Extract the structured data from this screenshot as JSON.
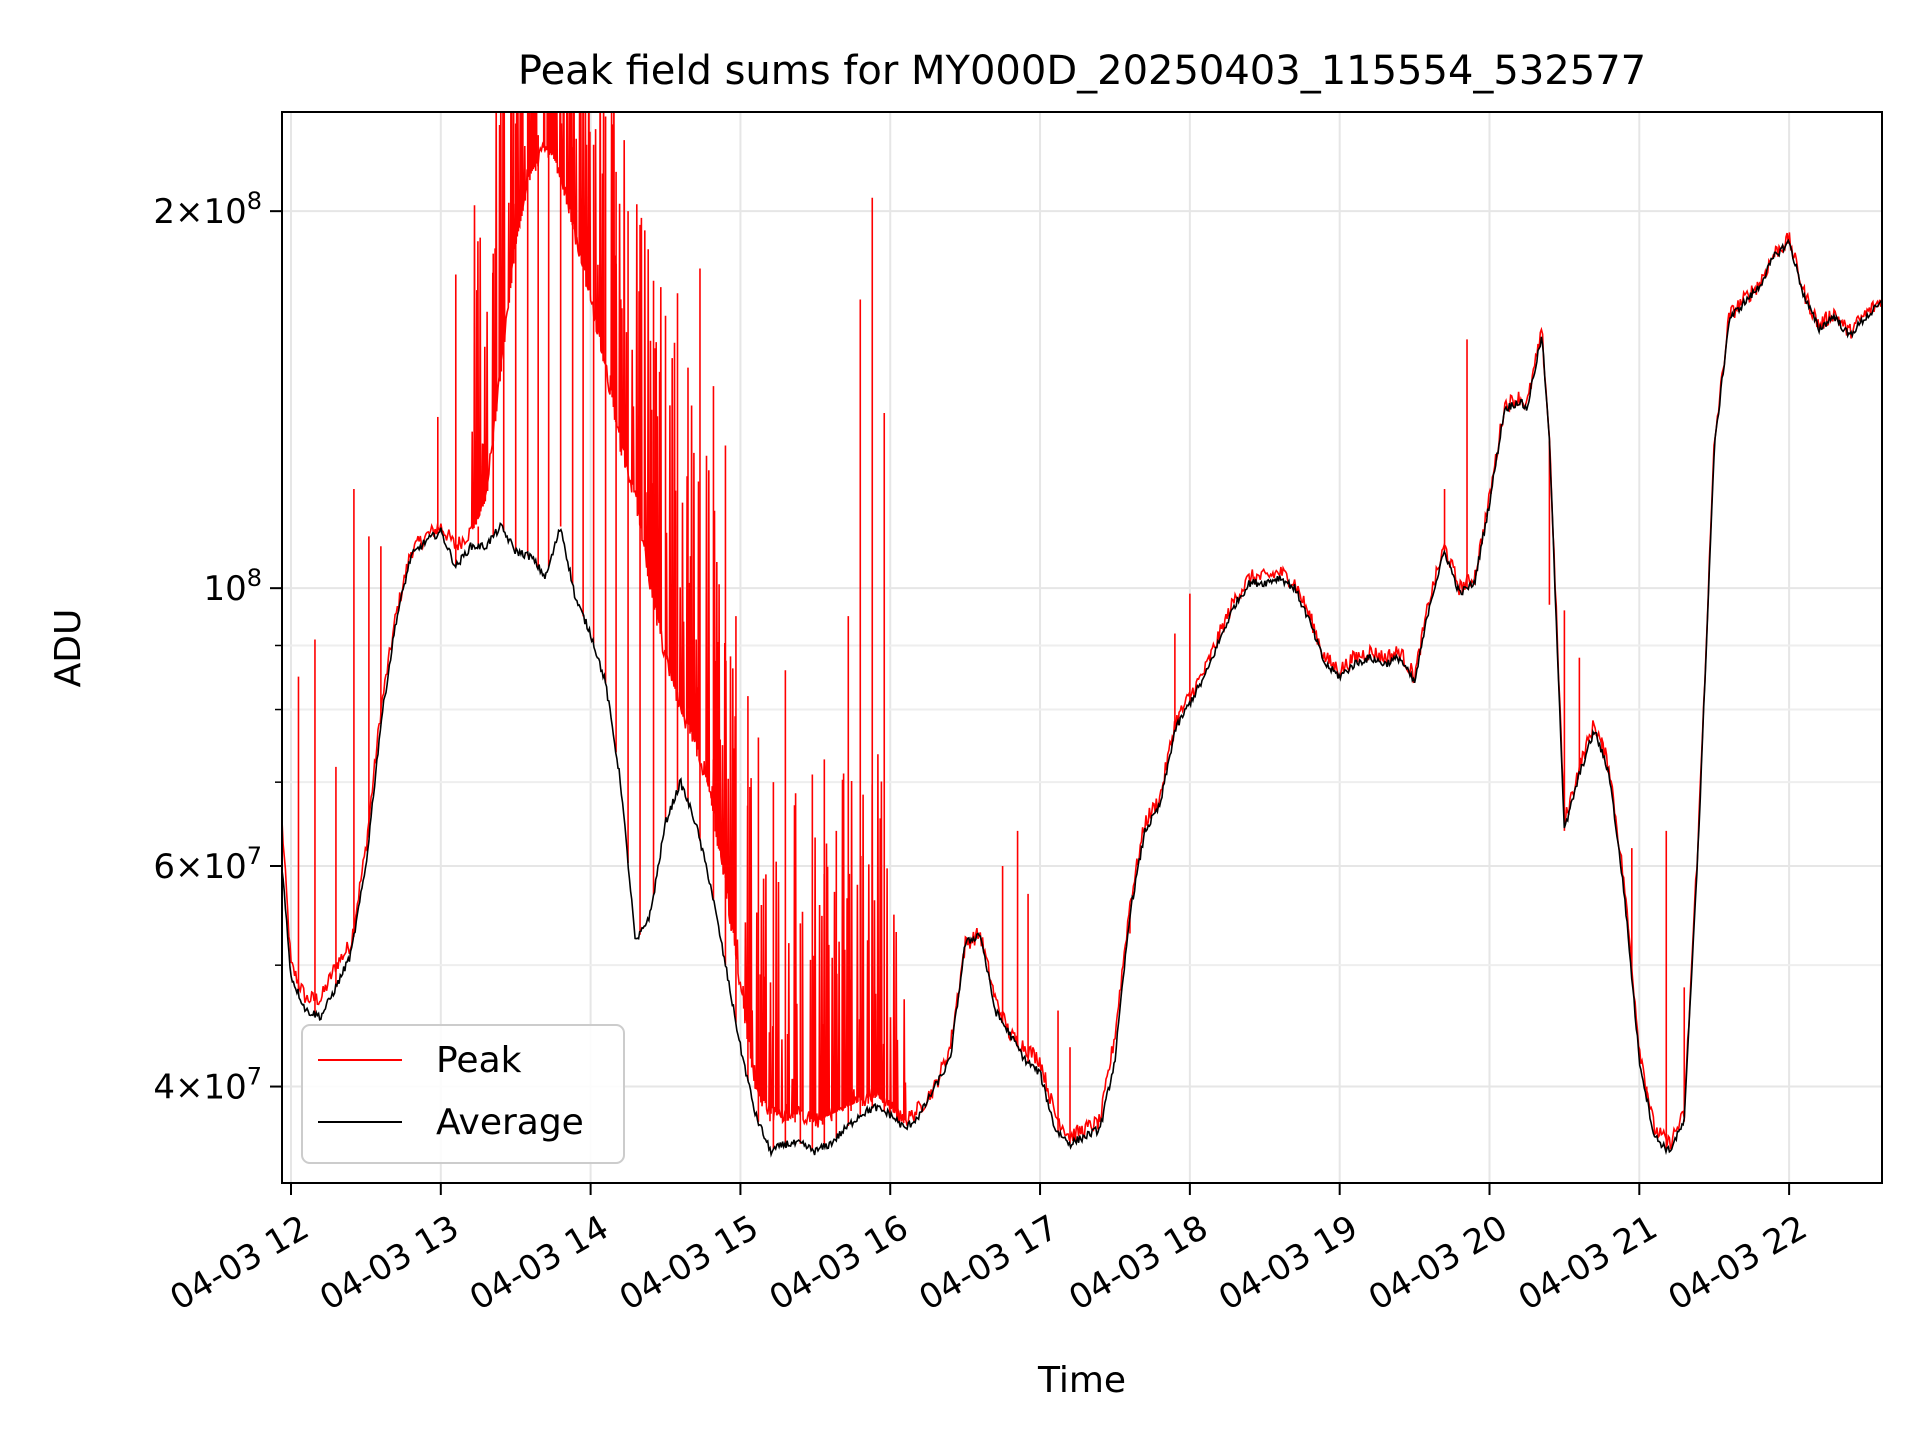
{
  "chart_data": {
    "type": "line",
    "title": "Peak field sums for MY000D_20250403_115554_532577",
    "xlabel": "Time",
    "ylabel": "ADU",
    "yscale": "log",
    "ylim": [
      33500000,
      240000000
    ],
    "xlim": [
      11.94,
      22.62
    ],
    "grid": true,
    "legend_position": "lower-left",
    "x_ticks": [
      {
        "value": 12,
        "label": "04-03 12"
      },
      {
        "value": 13,
        "label": "04-03 13"
      },
      {
        "value": 14,
        "label": "04-03 14"
      },
      {
        "value": 15,
        "label": "04-03 15"
      },
      {
        "value": 16,
        "label": "04-03 16"
      },
      {
        "value": 17,
        "label": "04-03 17"
      },
      {
        "value": 18,
        "label": "04-03 18"
      },
      {
        "value": 19,
        "label": "04-03 19"
      },
      {
        "value": 20,
        "label": "04-03 20"
      },
      {
        "value": 21,
        "label": "04-03 21"
      },
      {
        "value": 22,
        "label": "04-03 22"
      }
    ],
    "y_ticks": [
      {
        "value": 40000000,
        "mant": "4",
        "exp": "7"
      },
      {
        "value": 60000000,
        "mant": "6",
        "exp": "7"
      },
      {
        "value": 100000000,
        "mant": "",
        "exp": "8"
      },
      {
        "value": 200000000,
        "mant": "2",
        "exp": "8"
      }
    ],
    "y_minor_ticks": [
      50000000,
      70000000,
      80000000,
      90000000
    ],
    "series": [
      {
        "name": "Peak",
        "color": "#ff0000",
        "x": [
          11.94,
          12.0,
          12.1,
          12.2,
          12.3,
          12.4,
          12.5,
          12.6,
          12.7,
          12.8,
          12.9,
          13.0,
          13.1,
          13.2,
          13.3,
          13.4,
          13.5,
          13.6,
          13.7,
          13.8,
          13.9,
          14.0,
          14.1,
          14.2,
          14.3,
          14.4,
          14.5,
          14.6,
          14.7,
          14.8,
          14.9,
          15.0,
          15.1,
          15.2,
          15.3,
          15.4,
          15.5,
          15.6,
          15.7,
          15.8,
          15.9,
          16.0,
          16.1,
          16.2,
          16.3,
          16.4,
          16.5,
          16.6,
          16.7,
          16.8,
          16.9,
          17.0,
          17.1,
          17.2,
          17.3,
          17.4,
          17.5,
          17.6,
          17.7,
          17.8,
          17.9,
          17.95,
          18.0,
          18.1,
          18.2,
          18.3,
          18.4,
          18.5,
          18.6,
          18.7,
          18.8,
          18.9,
          19.0,
          19.1,
          19.2,
          19.3,
          19.4,
          19.5,
          19.6,
          19.7,
          19.8,
          19.9,
          20.0,
          20.1,
          20.2,
          20.25,
          20.3,
          20.35,
          20.4,
          20.5,
          20.6,
          20.7,
          20.8,
          20.9,
          21.0,
          21.1,
          21.2,
          21.3,
          21.4,
          21.5,
          21.6,
          21.7,
          21.8,
          21.9,
          22.0,
          22.1,
          22.2,
          22.3,
          22.4,
          22.5,
          22.62
        ],
        "y": [
          65000000,
          50000000,
          47000000,
          47000000,
          50000000,
          52000000,
          62000000,
          80000000,
          95000000,
          107000000,
          110000000,
          112000000,
          108000000,
          111000000,
          118000000,
          150000000,
          190000000,
          215000000,
          225000000,
          215000000,
          190000000,
          170000000,
          150000000,
          130000000,
          118000000,
          100000000,
          88000000,
          80000000,
          75000000,
          68000000,
          58000000,
          48000000,
          40000000,
          38000000,
          38000000,
          38000000,
          37500000,
          38000000,
          38500000,
          39000000,
          39500000,
          38500000,
          37500000,
          38500000,
          40000000,
          43000000,
          52000000,
          53000000,
          47000000,
          44000000,
          43000000,
          42000000,
          38000000,
          36500000,
          37000000,
          37500000,
          44000000,
          56000000,
          65000000,
          68000000,
          78000000,
          80000000,
          82000000,
          86000000,
          92000000,
          98000000,
          102000000,
          102000000,
          103000000,
          101000000,
          95000000,
          88000000,
          86000000,
          88000000,
          89000000,
          88000000,
          89000000,
          85000000,
          98000000,
          108000000,
          100000000,
          102000000,
          118000000,
          140000000,
          142000000,
          140000000,
          150000000,
          160000000,
          132000000,
          65000000,
          72000000,
          78000000,
          72000000,
          58000000,
          43000000,
          37000000,
          36000000,
          38000000,
          66000000,
          130000000,
          165000000,
          170000000,
          175000000,
          185000000,
          190000000,
          172000000,
          162000000,
          166000000,
          160000000,
          165000000,
          170000000
        ],
        "spikes": [
          [
            12.05,
            85000000
          ],
          [
            12.16,
            91000000
          ],
          [
            12.3,
            72000000
          ],
          [
            12.42,
            120000000
          ],
          [
            12.52,
            110000000
          ],
          [
            12.6,
            108000000
          ],
          [
            12.98,
            137000000
          ],
          [
            13.1,
            178000000
          ],
          [
            13.25,
            112000000
          ],
          [
            13.35,
            185000000
          ],
          [
            13.42,
            210000000
          ],
          [
            13.5,
            235000000
          ],
          [
            13.58,
            240000000
          ],
          [
            13.65,
            230000000
          ],
          [
            13.72,
            238000000
          ],
          [
            13.8,
            240000000
          ],
          [
            13.88,
            225000000
          ],
          [
            13.95,
            212000000
          ],
          [
            14.02,
            226000000
          ],
          [
            14.1,
            238000000
          ],
          [
            14.17,
            215000000
          ],
          [
            14.25,
            200000000
          ],
          [
            14.33,
            195000000
          ],
          [
            14.42,
            176000000
          ],
          [
            14.5,
            165000000
          ],
          [
            14.58,
            172000000
          ],
          [
            14.65,
            150000000
          ],
          [
            14.73,
            180000000
          ],
          [
            14.82,
            145000000
          ],
          [
            14.9,
            130000000
          ],
          [
            14.97,
            95000000
          ],
          [
            15.05,
            82000000
          ],
          [
            15.12,
            76000000
          ],
          [
            15.22,
            70000000
          ],
          [
            15.3,
            86000000
          ],
          [
            15.4,
            54000000
          ],
          [
            15.48,
            71000000
          ],
          [
            15.56,
            73000000
          ],
          [
            15.64,
            64000000
          ],
          [
            15.72,
            95000000
          ],
          [
            15.8,
            170000000
          ],
          [
            15.88,
            205000000
          ],
          [
            15.96,
            138000000
          ],
          [
            16.05,
            40000000
          ],
          [
            16.62,
            52000000
          ],
          [
            16.75,
            60000000
          ],
          [
            16.85,
            64000000
          ],
          [
            16.92,
            57000000
          ],
          [
            17.12,
            46000000
          ],
          [
            17.2,
            43000000
          ],
          [
            17.6,
            53000000
          ],
          [
            17.9,
            92000000
          ],
          [
            18.0,
            99000000
          ],
          [
            19.7,
            120000000
          ],
          [
            19.85,
            158000000
          ],
          [
            20.4,
            97000000
          ],
          [
            20.5,
            96000000
          ],
          [
            20.6,
            88000000
          ],
          [
            20.75,
            76000000
          ],
          [
            20.95,
            62000000
          ],
          [
            21.05,
            40000000
          ],
          [
            21.18,
            64000000
          ],
          [
            21.3,
            48000000
          ]
        ]
      },
      {
        "name": "Average",
        "color": "#000000",
        "x": [
          11.94,
          12.0,
          12.1,
          12.2,
          12.3,
          12.4,
          12.5,
          12.6,
          12.7,
          12.8,
          12.9,
          13.0,
          13.1,
          13.2,
          13.3,
          13.4,
          13.5,
          13.6,
          13.7,
          13.8,
          13.9,
          14.0,
          14.1,
          14.2,
          14.3,
          14.4,
          14.5,
          14.6,
          14.7,
          14.8,
          14.9,
          15.0,
          15.1,
          15.2,
          15.3,
          15.4,
          15.5,
          15.6,
          15.7,
          15.8,
          15.9,
          16.0,
          16.1,
          16.2,
          16.3,
          16.4,
          16.5,
          16.6,
          16.7,
          16.8,
          16.9,
          17.0,
          17.1,
          17.2,
          17.3,
          17.4,
          17.5,
          17.6,
          17.7,
          17.8,
          17.9,
          17.95,
          18.0,
          18.1,
          18.2,
          18.3,
          18.4,
          18.5,
          18.6,
          18.7,
          18.8,
          18.9,
          19.0,
          19.1,
          19.2,
          19.3,
          19.4,
          19.5,
          19.6,
          19.7,
          19.8,
          19.9,
          20.0,
          20.1,
          20.2,
          20.25,
          20.3,
          20.35,
          20.4,
          20.5,
          20.6,
          20.7,
          20.8,
          20.9,
          21.0,
          21.1,
          21.2,
          21.3,
          21.4,
          21.5,
          21.6,
          21.7,
          21.8,
          21.9,
          22.0,
          22.1,
          22.2,
          22.3,
          22.4,
          22.5,
          22.62
        ],
        "y": [
          60000000,
          49000000,
          46000000,
          45500000,
          48000000,
          51000000,
          60000000,
          78000000,
          94000000,
          106000000,
          109000000,
          111000000,
          104000000,
          108000000,
          108000000,
          112000000,
          107000000,
          106000000,
          102000000,
          112000000,
          98000000,
          92000000,
          84000000,
          70000000,
          52000000,
          55000000,
          65000000,
          70000000,
          65000000,
          58000000,
          50000000,
          43000000,
          38000000,
          35500000,
          36000000,
          36000000,
          35500000,
          36000000,
          37000000,
          38000000,
          38500000,
          38000000,
          37000000,
          38000000,
          40000000,
          42000000,
          52000000,
          53000000,
          46000000,
          44000000,
          42000000,
          41000000,
          37000000,
          36000000,
          36500000,
          37000000,
          42000000,
          55000000,
          64000000,
          67000000,
          77000000,
          79000000,
          81000000,
          85000000,
          91000000,
          97000000,
          101000000,
          101000000,
          102000000,
          100000000,
          94000000,
          87000000,
          85000000,
          87000000,
          88000000,
          87000000,
          88000000,
          84000000,
          97000000,
          107000000,
          99000000,
          101000000,
          117000000,
          139000000,
          141000000,
          139000000,
          149000000,
          159000000,
          131000000,
          64000000,
          71000000,
          77000000,
          71000000,
          57000000,
          42000000,
          36500000,
          35500000,
          37500000,
          65000000,
          129000000,
          164000000,
          169000000,
          174000000,
          184000000,
          189000000,
          171000000,
          161000000,
          165000000,
          159000000,
          164000000,
          169000000
        ]
      }
    ]
  }
}
